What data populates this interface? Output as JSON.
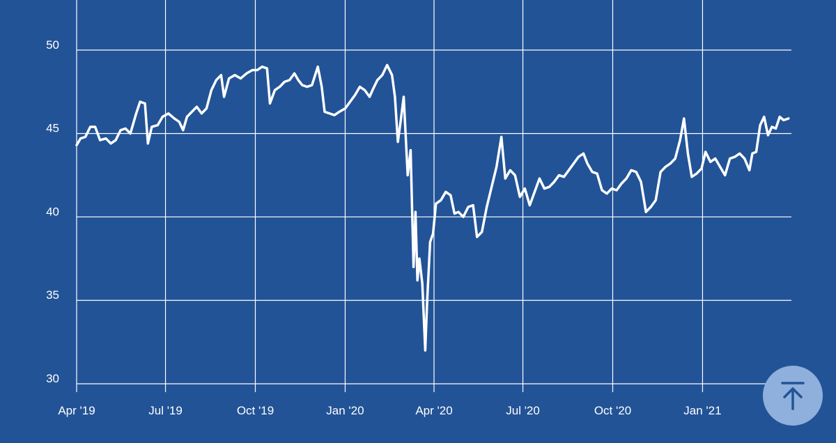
{
  "chart_data": {
    "type": "line",
    "title": "",
    "xlabel": "",
    "ylabel": "",
    "ylim": [
      29.5,
      53
    ],
    "xlim": [
      "2019-04-01",
      "2021-04-02"
    ],
    "grid": {
      "horizontal": true,
      "vertical": true
    },
    "y_ticks": [
      {
        "value": 30,
        "label": "30"
      },
      {
        "value": 35,
        "label": "35"
      },
      {
        "value": 40,
        "label": "40"
      },
      {
        "value": 45,
        "label": "45"
      },
      {
        "value": 50,
        "label": "50"
      }
    ],
    "x_ticks": [
      {
        "value": "2019-04-01",
        "label": "Apr '19"
      },
      {
        "value": "2019-07-01",
        "label": "Jul '19"
      },
      {
        "value": "2019-10-01",
        "label": "Oct '19"
      },
      {
        "value": "2020-01-01",
        "label": "Jan '20"
      },
      {
        "value": "2020-04-01",
        "label": "Apr '20"
      },
      {
        "value": "2020-07-01",
        "label": "Jul '20"
      },
      {
        "value": "2020-10-01",
        "label": "Oct '20"
      },
      {
        "value": "2021-01-01",
        "label": "Jan '21"
      }
    ],
    "series": [
      {
        "color": "#ffffff",
        "points": [
          [
            "2019-04-01",
            44.3
          ],
          [
            "2019-04-05",
            44.7
          ],
          [
            "2019-04-10",
            44.8
          ],
          [
            "2019-04-15",
            45.4
          ],
          [
            "2019-04-20",
            45.4
          ],
          [
            "2019-04-25",
            44.6
          ],
          [
            "2019-05-01",
            44.7
          ],
          [
            "2019-05-06",
            44.4
          ],
          [
            "2019-05-11",
            44.6
          ],
          [
            "2019-05-16",
            45.2
          ],
          [
            "2019-05-21",
            45.3
          ],
          [
            "2019-05-26",
            45.0
          ],
          [
            "2019-06-01",
            46.2
          ],
          [
            "2019-06-05",
            46.9
          ],
          [
            "2019-06-10",
            46.8
          ],
          [
            "2019-06-13",
            44.4
          ],
          [
            "2019-06-17",
            45.4
          ],
          [
            "2019-06-23",
            45.5
          ],
          [
            "2019-06-28",
            46.0
          ],
          [
            "2019-07-04",
            46.2
          ],
          [
            "2019-07-10",
            45.9
          ],
          [
            "2019-07-15",
            45.7
          ],
          [
            "2019-07-19",
            45.2
          ],
          [
            "2019-07-23",
            46.0
          ],
          [
            "2019-07-28",
            46.3
          ],
          [
            "2019-08-02",
            46.6
          ],
          [
            "2019-08-07",
            46.2
          ],
          [
            "2019-08-12",
            46.5
          ],
          [
            "2019-08-17",
            47.6
          ],
          [
            "2019-08-22",
            48.2
          ],
          [
            "2019-08-27",
            48.5
          ],
          [
            "2019-08-30",
            47.2
          ],
          [
            "2019-09-04",
            48.3
          ],
          [
            "2019-09-10",
            48.5
          ],
          [
            "2019-09-16",
            48.3
          ],
          [
            "2019-09-22",
            48.6
          ],
          [
            "2019-09-28",
            48.8
          ],
          [
            "2019-10-03",
            48.8
          ],
          [
            "2019-10-08",
            49.0
          ],
          [
            "2019-10-13",
            48.9
          ],
          [
            "2019-10-16",
            46.8
          ],
          [
            "2019-10-21",
            47.6
          ],
          [
            "2019-10-26",
            47.8
          ],
          [
            "2019-10-31",
            48.1
          ],
          [
            "2019-11-05",
            48.2
          ],
          [
            "2019-11-10",
            48.6
          ],
          [
            "2019-11-14",
            48.2
          ],
          [
            "2019-11-18",
            47.9
          ],
          [
            "2019-11-23",
            47.8
          ],
          [
            "2019-11-28",
            47.9
          ],
          [
            "2019-12-04",
            49.0
          ],
          [
            "2019-12-08",
            47.8
          ],
          [
            "2019-12-11",
            46.3
          ],
          [
            "2019-12-16",
            46.2
          ],
          [
            "2019-12-21",
            46.1
          ],
          [
            "2019-12-26",
            46.3
          ],
          [
            "2020-01-01",
            46.5
          ],
          [
            "2020-01-06",
            46.9
          ],
          [
            "2020-01-11",
            47.3
          ],
          [
            "2020-01-16",
            47.8
          ],
          [
            "2020-01-21",
            47.6
          ],
          [
            "2020-01-26",
            47.2
          ],
          [
            "2020-01-29",
            47.6
          ],
          [
            "2020-02-03",
            48.2
          ],
          [
            "2020-02-08",
            48.5
          ],
          [
            "2020-02-13",
            49.1
          ],
          [
            "2020-02-18",
            48.5
          ],
          [
            "2020-02-21",
            47.2
          ],
          [
            "2020-02-24",
            44.5
          ],
          [
            "2020-02-27",
            45.8
          ],
          [
            "2020-03-01",
            47.2
          ],
          [
            "2020-03-05",
            42.5
          ],
          [
            "2020-03-08",
            44.0
          ],
          [
            "2020-03-11",
            37.0
          ],
          [
            "2020-03-13",
            40.3
          ],
          [
            "2020-03-15",
            36.2
          ],
          [
            "2020-03-17",
            37.5
          ],
          [
            "2020-03-20",
            36.0
          ],
          [
            "2020-03-23",
            32.0
          ],
          [
            "2020-03-25",
            35.0
          ],
          [
            "2020-03-28",
            38.5
          ],
          [
            "2020-03-31",
            39.0
          ],
          [
            "2020-04-03",
            40.8
          ],
          [
            "2020-04-08",
            41.0
          ],
          [
            "2020-04-13",
            41.5
          ],
          [
            "2020-04-18",
            41.3
          ],
          [
            "2020-04-22",
            40.2
          ],
          [
            "2020-04-26",
            40.3
          ],
          [
            "2020-05-01",
            40.0
          ],
          [
            "2020-05-06",
            40.6
          ],
          [
            "2020-05-11",
            40.7
          ],
          [
            "2020-05-15",
            38.8
          ],
          [
            "2020-05-20",
            39.1
          ],
          [
            "2020-05-25",
            40.6
          ],
          [
            "2020-05-30",
            41.8
          ],
          [
            "2020-06-04",
            43.0
          ],
          [
            "2020-06-09",
            44.8
          ],
          [
            "2020-06-13",
            42.3
          ],
          [
            "2020-06-18",
            42.8
          ],
          [
            "2020-06-23",
            42.5
          ],
          [
            "2020-06-28",
            41.2
          ],
          [
            "2020-07-03",
            41.7
          ],
          [
            "2020-07-08",
            40.7
          ],
          [
            "2020-07-13",
            41.5
          ],
          [
            "2020-07-18",
            42.3
          ],
          [
            "2020-07-23",
            41.7
          ],
          [
            "2020-07-28",
            41.8
          ],
          [
            "2020-08-02",
            42.1
          ],
          [
            "2020-08-07",
            42.5
          ],
          [
            "2020-08-12",
            42.4
          ],
          [
            "2020-08-17",
            42.8
          ],
          [
            "2020-08-22",
            43.2
          ],
          [
            "2020-08-27",
            43.6
          ],
          [
            "2020-09-01",
            43.8
          ],
          [
            "2020-09-05",
            43.2
          ],
          [
            "2020-09-10",
            42.7
          ],
          [
            "2020-09-15",
            42.6
          ],
          [
            "2020-09-20",
            41.6
          ],
          [
            "2020-09-25",
            41.4
          ],
          [
            "2020-09-30",
            41.7
          ],
          [
            "2020-10-05",
            41.6
          ],
          [
            "2020-10-10",
            42.0
          ],
          [
            "2020-10-15",
            42.3
          ],
          [
            "2020-10-20",
            42.8
          ],
          [
            "2020-10-25",
            42.7
          ],
          [
            "2020-10-30",
            42.1
          ],
          [
            "2020-11-04",
            40.3
          ],
          [
            "2020-11-09",
            40.6
          ],
          [
            "2020-11-14",
            41.0
          ],
          [
            "2020-11-19",
            42.7
          ],
          [
            "2020-11-24",
            43.0
          ],
          [
            "2020-11-29",
            43.2
          ],
          [
            "2020-12-04",
            43.5
          ],
          [
            "2020-12-09",
            44.6
          ],
          [
            "2020-12-13",
            45.9
          ],
          [
            "2020-12-17",
            43.8
          ],
          [
            "2020-12-21",
            42.4
          ],
          [
            "2020-12-26",
            42.6
          ],
          [
            "2020-12-31",
            42.9
          ],
          [
            "2021-01-04",
            43.9
          ],
          [
            "2021-01-09",
            43.3
          ],
          [
            "2021-01-14",
            43.5
          ],
          [
            "2021-01-19",
            43.0
          ],
          [
            "2021-01-24",
            42.5
          ],
          [
            "2021-01-29",
            43.5
          ],
          [
            "2021-02-03",
            43.6
          ],
          [
            "2021-02-08",
            43.8
          ],
          [
            "2021-02-13",
            43.5
          ],
          [
            "2021-02-18",
            42.8
          ],
          [
            "2021-02-21",
            43.8
          ],
          [
            "2021-02-25",
            43.9
          ],
          [
            "2021-03-01",
            45.5
          ],
          [
            "2021-03-05",
            46.0
          ],
          [
            "2021-03-09",
            44.9
          ],
          [
            "2021-03-13",
            45.4
          ],
          [
            "2021-03-17",
            45.3
          ],
          [
            "2021-03-21",
            46.0
          ],
          [
            "2021-03-25",
            45.8
          ],
          [
            "2021-03-30",
            45.9
          ]
        ]
      }
    ]
  },
  "scroll_top_button": {
    "icon": "arrow-up-to-line-icon",
    "color": "#8fb0dc"
  }
}
